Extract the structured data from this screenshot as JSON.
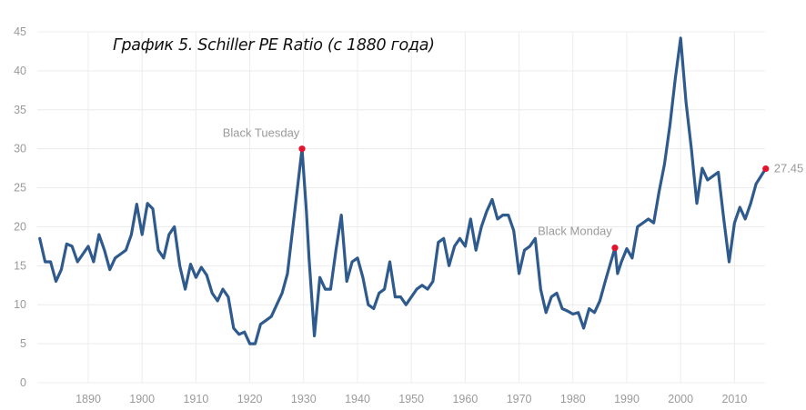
{
  "chart_data": {
    "type": "line",
    "title": "График 5. Schiller PE Ratio (с 1880 года)",
    "xlabel": "",
    "ylabel": "",
    "xlim": [
      1880.5,
      2016
    ],
    "ylim": [
      0,
      45
    ],
    "grid": true,
    "x_ticks": [
      1890,
      1900,
      1910,
      1920,
      1930,
      1940,
      1950,
      1960,
      1970,
      1980,
      1990,
      2000,
      2010
    ],
    "y_ticks": [
      0,
      5,
      10,
      15,
      20,
      25,
      30,
      35,
      40,
      45
    ],
    "colors": {
      "line": "#2f5a8e",
      "marker": "#e8112d",
      "grid": "#ececec",
      "text": "#9a9a9a"
    },
    "series": [
      {
        "name": "Shiller PE",
        "x": [
          1881,
          1882,
          1883,
          1884,
          1885,
          1886,
          1887,
          1888,
          1889,
          1890,
          1891,
          1892,
          1893,
          1894,
          1895,
          1896,
          1897,
          1898,
          1899,
          1900,
          1901,
          1902,
          1903,
          1904,
          1905,
          1906,
          1907,
          1908,
          1909,
          1910,
          1911,
          1912,
          1913,
          1914,
          1915,
          1916,
          1917,
          1918,
          1919,
          1920,
          1921,
          1922,
          1923,
          1924,
          1925,
          1926,
          1927,
          1928,
          1929.7,
          1930.5,
          1931,
          1932,
          1933,
          1934,
          1935,
          1936,
          1937,
          1938,
          1939,
          1940,
          1941,
          1942,
          1943,
          1944,
          1945,
          1946,
          1947,
          1948,
          1949,
          1950,
          1951,
          1952,
          1953,
          1954,
          1955,
          1956,
          1957,
          1958,
          1959,
          1960,
          1961,
          1962,
          1963,
          1964,
          1965,
          1966,
          1967,
          1968,
          1969,
          1970,
          1971,
          1972,
          1973,
          1974,
          1975,
          1976,
          1977,
          1978,
          1979,
          1980,
          1981,
          1982,
          1983,
          1984,
          1985,
          1986,
          1987.8,
          1988.3,
          1989,
          1990,
          1991,
          1992,
          1993,
          1994,
          1995,
          1996,
          1997,
          1998,
          1999,
          2000,
          2001,
          2002,
          2003,
          2004,
          2005,
          2006,
          2007,
          2008,
          2009,
          2010,
          2011,
          2012,
          2013,
          2014,
          2015.8
        ],
        "y": [
          18.5,
          15.5,
          15.5,
          13,
          14.5,
          17.8,
          17.5,
          15.5,
          16.5,
          17.5,
          15.5,
          19,
          17,
          14.5,
          16,
          16.5,
          17,
          19,
          22.9,
          19,
          23,
          22.3,
          17,
          16,
          19,
          20,
          15,
          12,
          15.2,
          13.5,
          14.8,
          13.8,
          11.5,
          10.5,
          12,
          11,
          7,
          6.2,
          6.5,
          5,
          5,
          7.5,
          8,
          8.5,
          10,
          11.5,
          14,
          20,
          30,
          22,
          16,
          6,
          13.5,
          12,
          12,
          17,
          21.5,
          13,
          15.5,
          16,
          13.5,
          10,
          9.5,
          11.5,
          12,
          15.5,
          11,
          11,
          10,
          11,
          12,
          12.5,
          12,
          13,
          18,
          18.5,
          15,
          17.5,
          18.5,
          17.5,
          21,
          17,
          20,
          22,
          23.5,
          21,
          21.5,
          21.5,
          19.5,
          14,
          17,
          17.5,
          18.5,
          12,
          9,
          11,
          11.5,
          9.5,
          9.2,
          8.8,
          9,
          7,
          9.5,
          9,
          10.5,
          13,
          17.3,
          14,
          15.5,
          17.2,
          16,
          20,
          20.5,
          21,
          20.5,
          24.5,
          28,
          33,
          39,
          44.2,
          36,
          30,
          23,
          27.5,
          26,
          26.5,
          27,
          21,
          15.5,
          20.5,
          22.5,
          21,
          23,
          25.5,
          27.45
        ]
      }
    ],
    "annotations": [
      {
        "label": "Black Tuesday",
        "x": 1929.7,
        "y": 30
      },
      {
        "label": "Black Monday",
        "x": 1987.8,
        "y": 17.3
      },
      {
        "label": "27.45",
        "x": 2015.8,
        "y": 27.45
      }
    ]
  }
}
